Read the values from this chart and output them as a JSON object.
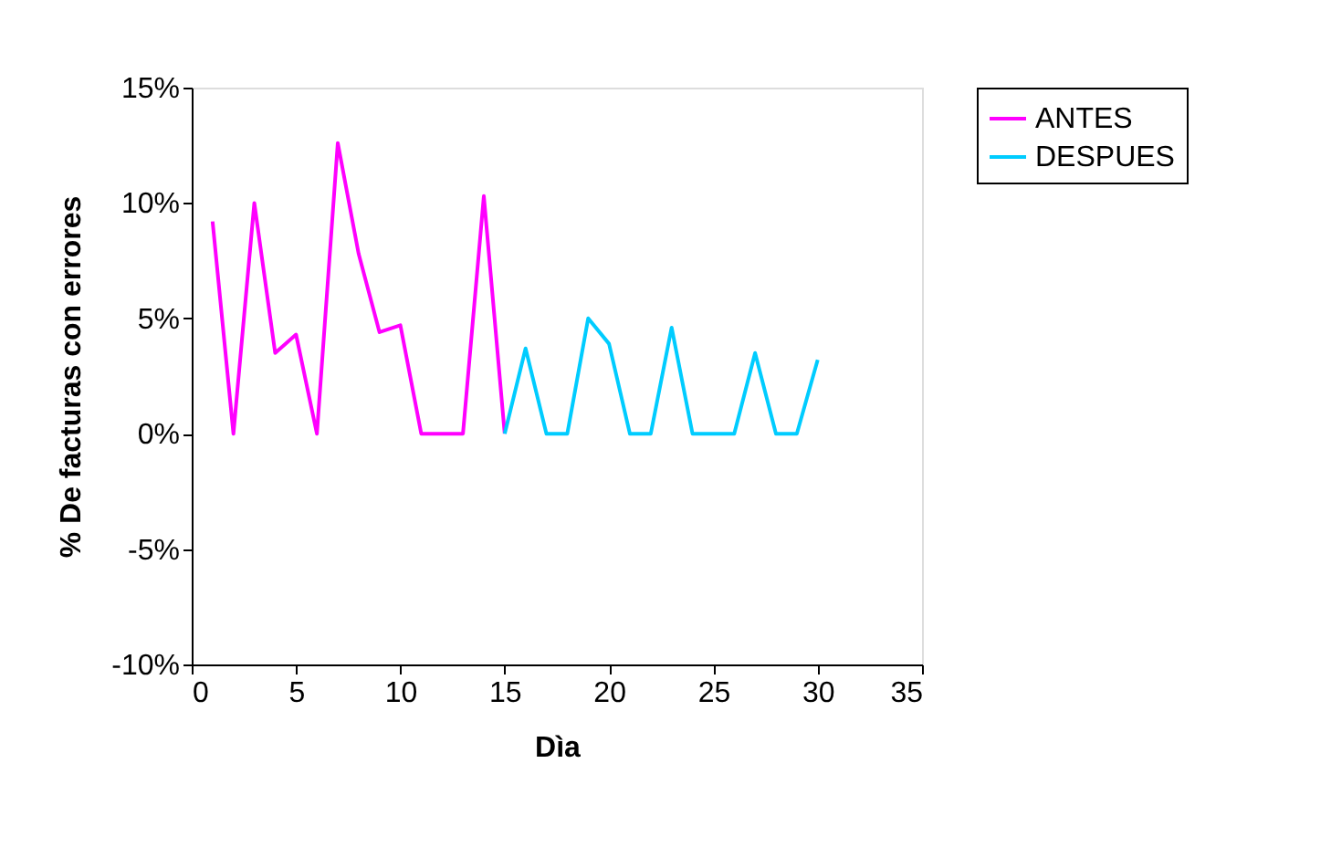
{
  "chart_data": {
    "type": "line",
    "xlabel": "Dìa",
    "ylabel": "% De facturas con errores",
    "xlim": [
      0,
      35
    ],
    "xticks": [
      0,
      5,
      10,
      15,
      20,
      25,
      30,
      35
    ],
    "ylim": [
      -10,
      15
    ],
    "yticks": [
      {
        "value": -10,
        "label": "-10%"
      },
      {
        "value": -5,
        "label": "-5%"
      },
      {
        "value": 0,
        "label": "0%"
      },
      {
        "value": 5,
        "label": "5%"
      },
      {
        "value": 10,
        "label": "10%"
      },
      {
        "value": 15,
        "label": "15%"
      }
    ],
    "grid": false,
    "legend": "right",
    "marker": "none",
    "line_style": "solid",
    "series": [
      {
        "name": "ANTES",
        "color": "#ff00ff",
        "x": [
          1,
          2,
          3,
          4,
          5,
          6,
          7,
          8,
          9,
          10,
          11,
          12,
          13,
          14,
          15
        ],
        "values": [
          9.2,
          0,
          10.0,
          3.5,
          4.3,
          0,
          12.6,
          7.8,
          4.4,
          4.7,
          0,
          0,
          0,
          10.3,
          0
        ]
      },
      {
        "name": "DESPUES",
        "color": "#00ccff",
        "x": [
          15,
          16,
          17,
          18,
          19,
          20,
          21,
          22,
          23,
          24,
          25,
          26,
          27,
          28,
          29,
          30
        ],
        "values": [
          0,
          3.7,
          0,
          0,
          5.0,
          3.9,
          0,
          0,
          4.6,
          0,
          0,
          0,
          3.5,
          0,
          0,
          3.2
        ]
      }
    ]
  }
}
